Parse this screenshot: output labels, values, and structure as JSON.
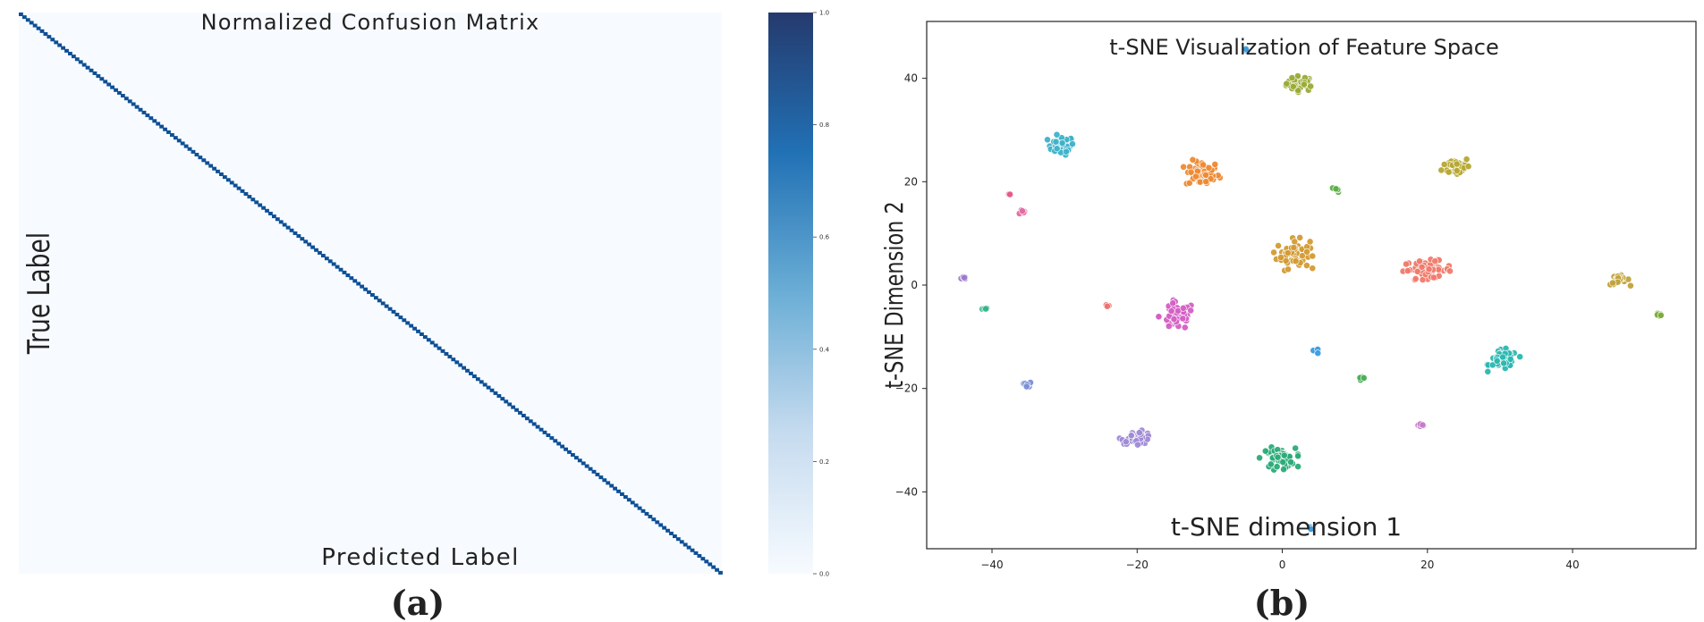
{
  "panel_a": {
    "caption": "(a)",
    "chart_data": {
      "type": "heatmap",
      "title": "Normalized Confusion Matrix",
      "xlabel": "Predicted Label",
      "ylabel": "True Label",
      "n_classes": 200,
      "diagonal_value": 1.0,
      "off_diagonal_value": 0.0,
      "colorbar": {
        "range": [
          0.0,
          1.0
        ],
        "ticks": [
          "0.0",
          "0.2",
          "0.4",
          "0.6",
          "0.8",
          "1.0"
        ],
        "colors": [
          "#f7fbff",
          "#c6dbef",
          "#6baed6",
          "#2171b5",
          "#08306b"
        ]
      }
    }
  },
  "panel_b": {
    "caption": "(b)",
    "chart_data": {
      "type": "scatter",
      "title": "t-SNE Visualization of Feature Space",
      "xlabel": "t-SNE dimension 1",
      "ylabel": "t-SNE Dimension 2",
      "xlim": [
        -49,
        57
      ],
      "ylim": [
        -51,
        51
      ],
      "xticks": [
        -40,
        -20,
        0,
        20,
        40
      ],
      "yticks": [
        -40,
        -20,
        0,
        20,
        40
      ],
      "x_tick_labels": [
        "−40",
        "−20",
        "0",
        "20",
        "40"
      ],
      "y_tick_labels": [
        "−40",
        "−20",
        "0",
        "20",
        "40"
      ],
      "clusters": [
        {
          "x": 2.5,
          "y": 39,
          "spread_x": 1.6,
          "spread_y": 1.2,
          "n": 40,
          "color": "#9aab35"
        },
        {
          "x": -30.5,
          "y": 27,
          "spread_x": 1.5,
          "spread_y": 1.5,
          "n": 35,
          "color": "#3fb2c9"
        },
        {
          "x": -11,
          "y": 21.5,
          "spread_x": 1.9,
          "spread_y": 2.1,
          "n": 55,
          "color": "#ee8a33"
        },
        {
          "x": 24,
          "y": 23,
          "spread_x": 1.6,
          "spread_y": 1.5,
          "n": 45,
          "color": "#b5a832"
        },
        {
          "x": 7.5,
          "y": 18.5,
          "spread_x": 0.4,
          "spread_y": 0.4,
          "n": 6,
          "color": "#5caf48"
        },
        {
          "x": -37.5,
          "y": 17.7,
          "spread_x": 0.2,
          "spread_y": 0.2,
          "n": 2,
          "color": "#e45c8a"
        },
        {
          "x": -36,
          "y": 14.3,
          "spread_x": 0.35,
          "spread_y": 0.35,
          "n": 5,
          "color": "#e06aa0"
        },
        {
          "x": 1.5,
          "y": 6,
          "spread_x": 1.9,
          "spread_y": 2.3,
          "n": 65,
          "color": "#d39b33"
        },
        {
          "x": 20,
          "y": 3,
          "spread_x": 2.8,
          "spread_y": 1.4,
          "n": 60,
          "color": "#f07a6a"
        },
        {
          "x": 46.5,
          "y": 1,
          "spread_x": 1.1,
          "spread_y": 0.8,
          "n": 20,
          "color": "#c0a23a"
        },
        {
          "x": -44,
          "y": 1.3,
          "spread_x": 0.45,
          "spread_y": 0.4,
          "n": 6,
          "color": "#9b7ad0"
        },
        {
          "x": -41,
          "y": -4.5,
          "spread_x": 0.35,
          "spread_y": 0.35,
          "n": 5,
          "color": "#34b58a"
        },
        {
          "x": -24,
          "y": -4,
          "spread_x": 0.3,
          "spread_y": 0.3,
          "n": 4,
          "color": "#f07070"
        },
        {
          "x": -14.5,
          "y": -6,
          "spread_x": 2.0,
          "spread_y": 2.2,
          "n": 55,
          "color": "#d45fc4"
        },
        {
          "x": 52,
          "y": -5.8,
          "spread_x": 0.35,
          "spread_y": 0.35,
          "n": 5,
          "color": "#7aac3a"
        },
        {
          "x": 4.5,
          "y": -12.8,
          "spread_x": 0.45,
          "spread_y": 0.4,
          "n": 7,
          "color": "#3c9de0"
        },
        {
          "x": 30.5,
          "y": -14.5,
          "spread_x": 1.6,
          "spread_y": 1.6,
          "n": 45,
          "color": "#2ab7b0"
        },
        {
          "x": 11,
          "y": -18,
          "spread_x": 0.35,
          "spread_y": 0.35,
          "n": 5,
          "color": "#4aae54"
        },
        {
          "x": -35,
          "y": -19.3,
          "spread_x": 0.45,
          "spread_y": 0.4,
          "n": 7,
          "color": "#7a8ed8"
        },
        {
          "x": 19,
          "y": -27,
          "spread_x": 0.45,
          "spread_y": 0.4,
          "n": 7,
          "color": "#c679c8"
        },
        {
          "x": -20,
          "y": -29.5,
          "spread_x": 1.8,
          "spread_y": 1.0,
          "n": 40,
          "color": "#a08ad6"
        },
        {
          "x": -0.5,
          "y": -33.5,
          "spread_x": 1.9,
          "spread_y": 1.6,
          "n": 55,
          "color": "#2bab78"
        },
        {
          "x": -5,
          "y": 45.5,
          "spread_x": 0.2,
          "spread_y": 0.2,
          "n": 2,
          "color": "#3c9de0"
        },
        {
          "x": 4,
          "y": -47,
          "spread_x": 0.3,
          "spread_y": 0.3,
          "n": 3,
          "color": "#3c9de0"
        }
      ]
    }
  }
}
